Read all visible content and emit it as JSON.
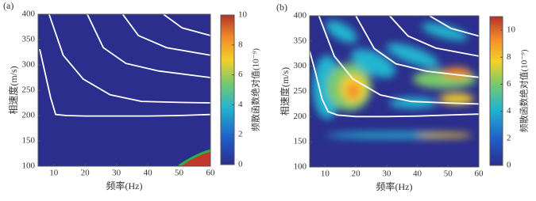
{
  "chart_data": [
    {
      "type": "line",
      "panel_label": "(a)",
      "xlabel": "频率(Hz)",
      "ylabel": "相速度(m/s)",
      "colorbar_label": "频散函数绝对值(10⁻⁹)",
      "xlim": [
        5,
        60
      ],
      "xticks": [
        10,
        20,
        30,
        40,
        50,
        60
      ],
      "ylim": [
        100,
        400
      ],
      "yticks": [
        100,
        150,
        200,
        250,
        300,
        350,
        400
      ],
      "clim": [
        0,
        10
      ],
      "cticks": [
        0,
        2,
        4,
        6,
        8,
        10
      ],
      "series": [
        {
          "color": "#ffffff",
          "x": [
            5.5,
            7,
            9,
            10.6,
            14,
            20,
            30,
            40,
            50,
            60
          ],
          "values": [
            331,
            290,
            235,
            202,
            200,
            199,
            199,
            199,
            200,
            202
          ]
        },
        {
          "color": "#ffffff",
          "x": [
            8.5,
            13,
            19.4,
            28,
            38,
            50,
            60
          ],
          "values": [
            400,
            319,
            272,
            241,
            228,
            226,
            225
          ]
        },
        {
          "color": "#ffffff",
          "x": [
            20.7,
            25.8,
            33,
            43.5,
            60
          ],
          "values": [
            400,
            334,
            303,
            288,
            275
          ]
        },
        {
          "color": "#ffffff",
          "x": [
            32,
            37,
            46,
            60
          ],
          "values": [
            400,
            358,
            334,
            319
          ]
        },
        {
          "color": "#ffffff",
          "x": [
            45,
            51,
            60
          ],
          "values": [
            400,
            373,
            358
          ]
        }
      ]
    },
    {
      "type": "line",
      "panel_label": "(b)",
      "xlabel": "频率(Hz)",
      "ylabel": "相速度(m/s)",
      "colorbar_label": "频散函数绝对值(10⁻⁹)",
      "xlim": [
        5,
        60
      ],
      "xticks": [
        10,
        20,
        30,
        40,
        50,
        60
      ],
      "ylim": [
        100,
        400
      ],
      "yticks": [
        100,
        150,
        200,
        250,
        300,
        350,
        400
      ],
      "clim": [
        0,
        11
      ],
      "cticks": [
        0,
        2,
        4,
        6,
        8,
        10
      ],
      "series": [
        {
          "color": "#ffffff",
          "x": [
            5,
            7,
            9,
            11,
            14,
            20,
            30,
            40,
            50,
            60
          ],
          "values": [
            330,
            285,
            235,
            210,
            203,
            200,
            200,
            201,
            203,
            205
          ]
        },
        {
          "color": "#ffffff",
          "x": [
            8,
            13,
            19,
            28,
            38,
            50,
            60
          ],
          "values": [
            400,
            320,
            275,
            243,
            230,
            227,
            225
          ]
        },
        {
          "color": "#ffffff",
          "x": [
            20,
            26,
            33,
            43,
            60
          ],
          "values": [
            400,
            335,
            305,
            290,
            278
          ]
        },
        {
          "color": "#ffffff",
          "x": [
            31,
            37,
            46,
            60
          ],
          "values": [
            400,
            360,
            336,
            320
          ]
        },
        {
          "color": "#ffffff",
          "x": [
            44,
            51,
            60
          ],
          "values": [
            400,
            375,
            360
          ]
        }
      ]
    }
  ]
}
